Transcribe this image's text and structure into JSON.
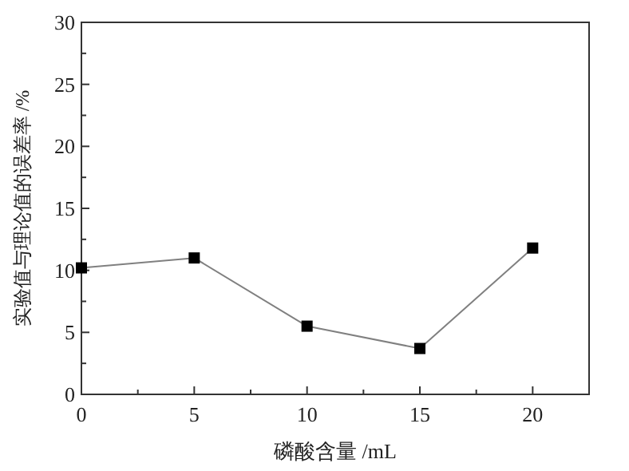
{
  "chart_data": {
    "type": "line",
    "xlabel": "磷酸含量 /mL",
    "ylabel": "实验值与理论值的误差率 /%",
    "x": [
      0,
      5,
      10,
      15,
      20
    ],
    "series": [
      {
        "color": "#808080",
        "values": [
          10.2,
          11.0,
          5.5,
          3.7,
          11.8
        ]
      }
    ],
    "marker": "square",
    "line_style": "solid",
    "xlim": [
      0,
      22.5
    ],
    "xticks": [
      0,
      {
        "value": 2.5,
        "label": null
      },
      5,
      {
        "value": 7.5,
        "label": null
      },
      10,
      {
        "value": 12.5,
        "label": null
      },
      15,
      {
        "value": 17.5,
        "label": null
      },
      20
    ],
    "ylim": [
      0,
      30
    ],
    "yticks": [
      0,
      {
        "value": 2.5,
        "label": null
      },
      5,
      {
        "value": 7.5,
        "label": null
      },
      10,
      {
        "value": 12.5,
        "label": null
      },
      15,
      {
        "value": 17.5,
        "label": null
      },
      20,
      {
        "value": 22.5,
        "label": null
      },
      25,
      {
        "value": 27.5,
        "label": null
      },
      30
    ]
  }
}
